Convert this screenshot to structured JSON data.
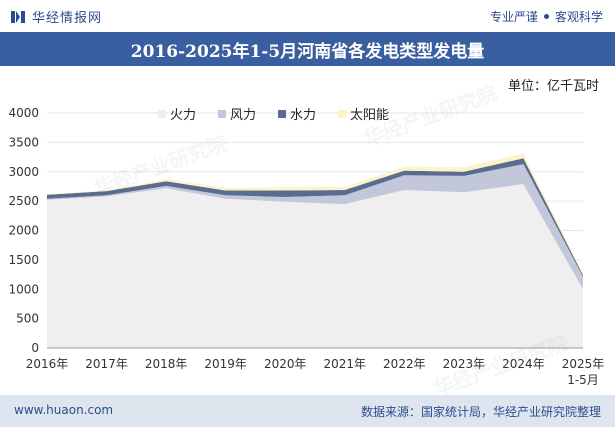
{
  "header": {
    "brand": "华经情报网",
    "tagline_left": "专业严谨",
    "tagline_right": "客观科学"
  },
  "watermark": "华经产业研究院",
  "chart_data": {
    "type": "area",
    "stacked": true,
    "title": "2016-2025年1-5月河南省各发电类型发电量",
    "unit_label": "单位：亿千瓦时",
    "categories": [
      "2016年",
      "2017年",
      "2018年",
      "2019年",
      "2020年",
      "2021年",
      "2022年",
      "2023年",
      "2024年",
      "2025年\n1-5月"
    ],
    "ylim": [
      0,
      4000
    ],
    "yticks": [
      "0",
      "500",
      "1000",
      "1500",
      "2000",
      "2500",
      "3000",
      "3500",
      "4000"
    ],
    "series": [
      {
        "name": "火力",
        "color": "#efefef",
        "values": [
          2520,
          2580,
          2720,
          2540,
          2490,
          2450,
          2690,
          2650,
          2790,
          1000
        ]
      },
      {
        "name": "风力",
        "color": "#c2c8da",
        "values": [
          20,
          20,
          40,
          60,
          80,
          150,
          250,
          280,
          340,
          210
        ]
      },
      {
        "name": "水力",
        "color": "#5a6d90",
        "values": [
          70,
          70,
          80,
          80,
          110,
          90,
          80,
          70,
          100,
          30
        ]
      },
      {
        "name": "太阳能",
        "color": "#fdf3c8",
        "values": [
          10,
          15,
          30,
          50,
          55,
          50,
          70,
          75,
          80,
          20
        ]
      }
    ]
  },
  "footer": {
    "website": "www.huaon.com",
    "source": "数据来源：国家统计局，华经产业研究院整理"
  }
}
